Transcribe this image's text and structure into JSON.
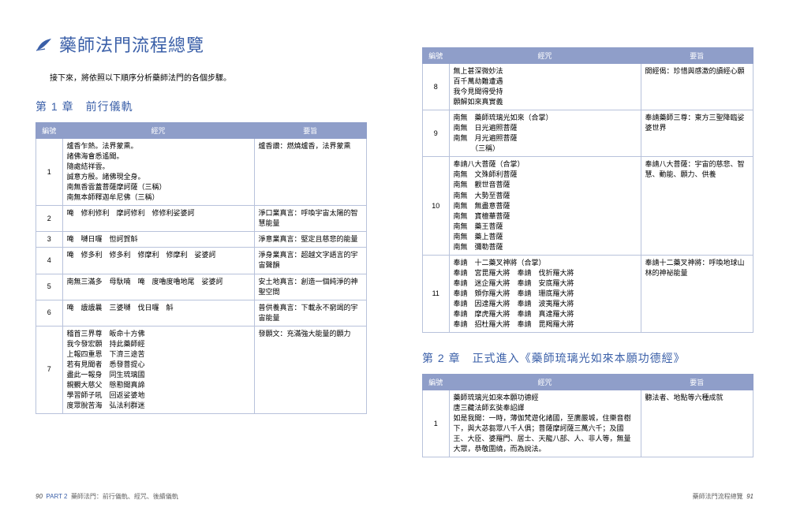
{
  "main_title": "藥師法門流程總覽",
  "intro": "接下來，將依照以下順序分析藥師法門的各個步驟。",
  "colors": {
    "heading": "#3a5fa8",
    "table_header_bg": "#8f9ec9",
    "table_header_text": "#ffffff",
    "table_border": "#b8c2db",
    "body_text": "#000000"
  },
  "chapter1": {
    "title": "第 1 章　前行儀軌",
    "headers": [
      "編號",
      "經咒",
      "要旨"
    ],
    "rows": [
      {
        "n": "1",
        "mid": "爐香乍熱。法界蒙熏。\n諸佛海會悉遙聞。\n隨處結祥雲。\n誠意方殷。諸佛現全身。\n南無香雲蓋菩薩摩訶薩（三稱）\n南無本師釋迦牟尼佛（三稱）",
        "right": "爐香讚：燃燒爐香，法界蒙熏"
      },
      {
        "n": "2",
        "mid": "唵　修利修利　摩訶修利　修修利娑婆訶",
        "right": "淨口業真言：呼喚宇宙太陽的智慧能量"
      },
      {
        "n": "3",
        "mid": "唵　嚩日囉　怛訶賀斛",
        "right": "淨意業真言：堅定且慈悲的能量"
      },
      {
        "n": "4",
        "mid": "唵　修多利　修多利　修摩利　修摩利　娑婆訶",
        "right": "淨身業真言：超越文字語言的宇宙聲韻"
      },
      {
        "n": "5",
        "mid": "南無三滿多　母馱喃　唵　度嚕度嚕地尾　娑婆訶",
        "right": "安土地真言：創造一個純淨的神聖空間"
      },
      {
        "n": "6",
        "mid": "唵　誐誐曩　三婆嚩　伐日囉　斛",
        "right": "普供養真言：下載永不窮竭的宇宙能量"
      },
      {
        "n": "7",
        "mid": "稽首三界尊　皈命十方佛\n我今發宏願　持此藥師經\n上報四重恩　下濟三途苦\n若有見聞者　悉發菩提心\n盡此一報身　同生琉璃國\n親覲大慈父　慇懃聞真諦\n學習師子吼　回返娑婆地\n度眾脫苦海　弘法利群迷",
        "right": "發願文：充滿強大能量的願力"
      }
    ]
  },
  "right_table": {
    "headers": [
      "編號",
      "經咒",
      "要旨"
    ],
    "rows": [
      {
        "n": "8",
        "mid": "無上甚深微妙法\n百千萬劫難遭遇\n我今見聞得受持\n願解如來真實義",
        "right": "開經偈：珍惜與感激的讀經心願"
      },
      {
        "n": "9",
        "mid": "南無　藥師琉璃光如來（合掌）\n南無　日光遍照菩薩\n南無　月光遍照菩薩\n　　　（三稱）",
        "right": "奉請藥師三尊：東方三聖降臨娑婆世界"
      },
      {
        "n": "10",
        "mid": "奉請八大菩薩（合掌）\n南無　文殊師利菩薩\n南無　觀世音菩薩\n南無　大勢至菩薩\n南無　無盡意菩薩\n南無　寶檀華菩薩\n南無　藥王菩薩\n南無　藥上菩薩\n南無　彌勒菩薩",
        "right": "奉請八大菩薩：宇宙的慈悲、智慧、動能、願力、供養"
      },
      {
        "n": "11",
        "mid": "奉請　十二藥叉神將（合掌）\n奉請　宮毘羅大將　奉請　伐折羅大將\n奉請　迷企羅大將　奉請　安底羅大將\n奉請　頞你羅大將　奉請　珊底羅大將\n奉請　因達羅大將　奉請　波夷羅大將\n奉請　摩虎羅大將　奉請　真達羅大將\n奉請　招杜羅大將　奉請　毘羯羅大將",
        "right": "奉請十二藥叉神將：呼喚地球山林的神祕能量"
      }
    ]
  },
  "chapter2": {
    "title": "第 2 章　正式進入《藥師琉璃光如來本願功德經》",
    "headers": [
      "編號",
      "經咒",
      "要旨"
    ],
    "rows": [
      {
        "n": "1",
        "mid": "藥師琉璃光如來本願功德經\n唐三藏法師玄奘奉詔譯\n如是我聞：一時，薄伽梵遊化諸國，至廣嚴城，住樂音樹下，與大苾芻眾八千人俱；菩薩摩訶薩三萬六千；及國王、大臣、婆羅門、居士、天龍八部、人、非人等，無量大眾，恭敬圍繞，而為說法。",
        "right": "聽法者、地點等六種成就"
      }
    ]
  },
  "footer_left": {
    "page": "90",
    "part": "PART 2",
    "text": "藥師法門：前行儀軌、經咒、後續儀軌"
  },
  "footer_right": {
    "text": "藥師法門流程總覽",
    "page": "91"
  }
}
